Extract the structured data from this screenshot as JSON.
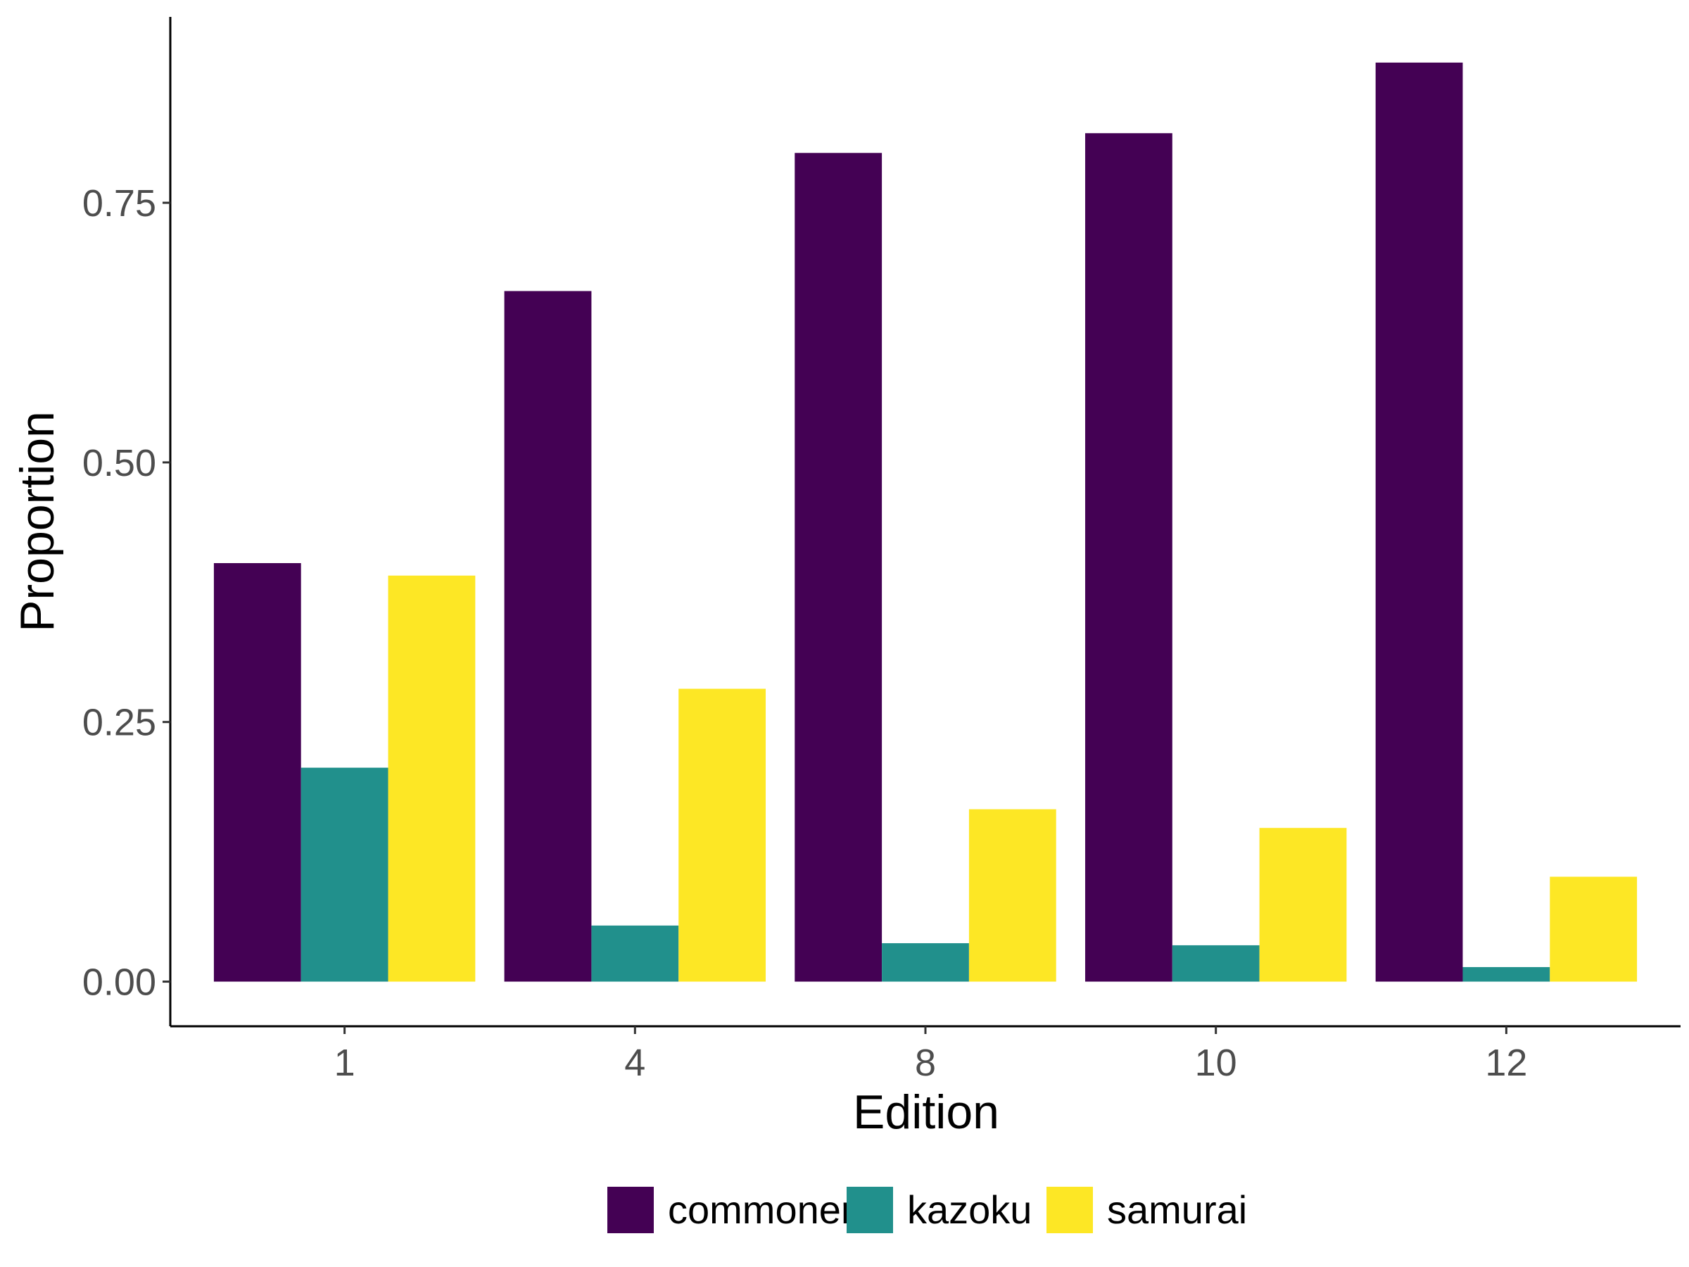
{
  "chart_data": {
    "type": "bar",
    "title": "",
    "xlabel": "Edition",
    "ylabel": "Proportion",
    "categories": [
      "1",
      "4",
      "8",
      "10",
      "12"
    ],
    "series": [
      {
        "name": "commoner",
        "color": "#440154",
        "values": [
          0.403,
          0.665,
          0.798,
          0.817,
          0.885
        ]
      },
      {
        "name": "kazoku",
        "color": "#21908C",
        "values": [
          0.206,
          0.054,
          0.037,
          0.035,
          0.014
        ]
      },
      {
        "name": "samurai",
        "color": "#FDE725",
        "values": [
          0.391,
          0.282,
          0.166,
          0.148,
          0.101
        ]
      }
    ],
    "yticks": [
      0.0,
      0.25,
      0.5,
      0.75
    ],
    "ytick_labels": [
      "0.00",
      "0.25",
      "0.50",
      "0.75"
    ],
    "ylim": [
      -0.043,
      0.929
    ],
    "grid": false,
    "legend_position": "bottom"
  }
}
